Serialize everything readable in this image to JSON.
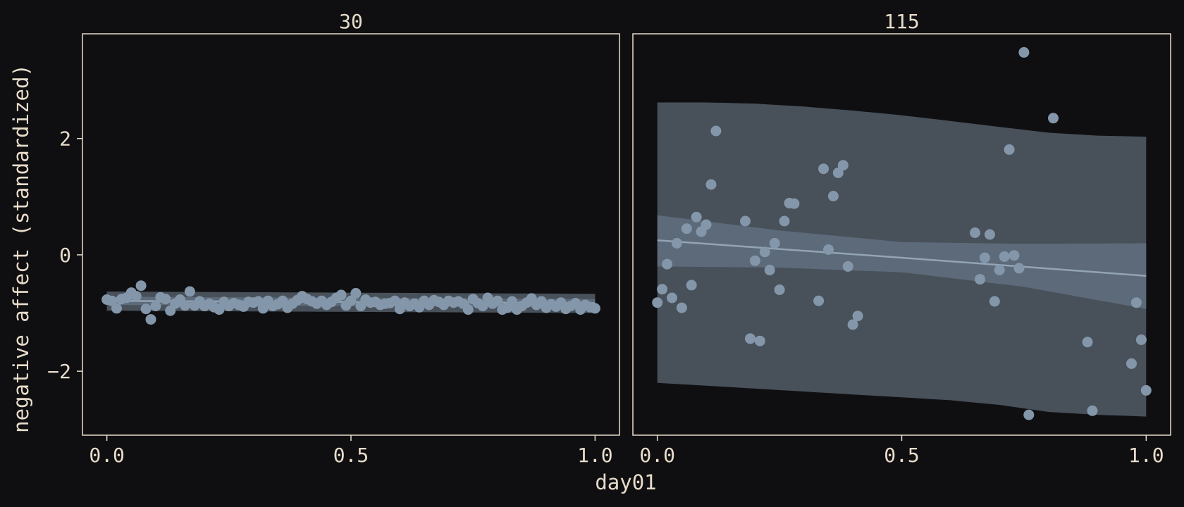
{
  "chart_data": {
    "type": "scatter",
    "xlabel": "day01",
    "ylabel": "negative affect (standardized)",
    "colors": {
      "background": "#0f0f11",
      "frame": "#e8dccb",
      "text": "#e8dccb",
      "points": "#8497aa",
      "outer_band": "#48505a",
      "inner_band": "#5c6a79",
      "fit_line": "#93a4b5"
    },
    "ylim": [
      -3.1,
      3.8
    ],
    "yticks": [
      {
        "value": -2,
        "label": "−2"
      },
      {
        "value": 0,
        "label": "0"
      },
      {
        "value": 2,
        "label": "2"
      }
    ],
    "xlim": [
      -0.05,
      1.05
    ],
    "xticks": [
      {
        "value": 0,
        "label": "0.0"
      },
      {
        "value": 0.5,
        "label": "0.5"
      },
      {
        "value": 1,
        "label": "1.0"
      }
    ],
    "panels": [
      {
        "title": "30",
        "fit": {
          "x": [
            0,
            1
          ],
          "y": [
            -0.79,
            -0.83
          ]
        },
        "inner_band": {
          "x": [
            0,
            1
          ],
          "lower": [
            -0.86,
            -0.9
          ],
          "upper": [
            -0.72,
            -0.76
          ]
        },
        "outer_band": {
          "x": [
            0,
            1
          ],
          "lower": [
            -0.96,
            -1.0
          ],
          "upper": [
            -0.63,
            -0.67
          ]
        },
        "points": {
          "x": [
            0,
            0.01,
            0.02,
            0.03,
            0.04,
            0.05,
            0.06,
            0.07,
            0.08,
            0.09,
            0.1,
            0.11,
            0.12,
            0.13,
            0.14,
            0.15,
            0.16,
            0.17,
            0.18,
            0.19,
            0.2,
            0.21,
            0.22,
            0.23,
            0.24,
            0.25,
            0.26,
            0.27,
            0.28,
            0.29,
            0.3,
            0.31,
            0.32,
            0.33,
            0.34,
            0.35,
            0.36,
            0.37,
            0.38,
            0.39,
            0.4,
            0.41,
            0.42,
            0.43,
            0.44,
            0.45,
            0.46,
            0.47,
            0.48,
            0.49,
            0.5,
            0.51,
            0.52,
            0.53,
            0.54,
            0.55,
            0.56,
            0.57,
            0.58,
            0.59,
            0.6,
            0.61,
            0.62,
            0.63,
            0.64,
            0.65,
            0.66,
            0.67,
            0.68,
            0.69,
            0.7,
            0.71,
            0.72,
            0.73,
            0.74,
            0.75,
            0.76,
            0.77,
            0.78,
            0.79,
            0.8,
            0.81,
            0.82,
            0.83,
            0.84,
            0.85,
            0.86,
            0.87,
            0.88,
            0.89,
            0.9,
            0.91,
            0.92,
            0.93,
            0.94,
            0.95,
            0.96,
            0.97,
            0.98,
            0.99,
            1.0
          ],
          "y": [
            -0.77,
            -0.79,
            -0.92,
            -0.76,
            -0.74,
            -0.65,
            -0.71,
            -0.53,
            -0.93,
            -1.11,
            -0.88,
            -0.73,
            -0.76,
            -0.96,
            -0.84,
            -0.77,
            -0.87,
            -0.63,
            -0.87,
            -0.8,
            -0.88,
            -0.84,
            -0.9,
            -0.94,
            -0.81,
            -0.88,
            -0.83,
            -0.86,
            -0.89,
            -0.81,
            -0.82,
            -0.8,
            -0.92,
            -0.79,
            -0.88,
            -0.85,
            -0.79,
            -0.91,
            -0.84,
            -0.78,
            -0.71,
            -0.76,
            -0.8,
            -0.84,
            -0.79,
            -0.86,
            -0.81,
            -0.74,
            -0.69,
            -0.87,
            -0.79,
            -0.66,
            -0.88,
            -0.77,
            -0.82,
            -0.81,
            -0.86,
            -0.84,
            -0.83,
            -0.79,
            -0.93,
            -0.82,
            -0.88,
            -0.84,
            -0.9,
            -0.79,
            -0.86,
            -0.78,
            -0.81,
            -0.86,
            -0.79,
            -0.82,
            -0.8,
            -0.84,
            -0.94,
            -0.76,
            -0.83,
            -0.88,
            -0.74,
            -0.84,
            -0.79,
            -0.94,
            -0.91,
            -0.8,
            -0.94,
            -0.88,
            -0.82,
            -0.75,
            -0.86,
            -0.8,
            -0.91,
            -0.85,
            -0.89,
            -0.82,
            -0.93,
            -0.88,
            -0.83,
            -0.94,
            -0.86,
            -0.9,
            -0.92
          ]
        }
      },
      {
        "title": "115",
        "fit": {
          "x": [
            0,
            0.5,
            1
          ],
          "y": [
            0.25,
            -0.05,
            -0.36
          ]
        },
        "inner_band": {
          "x": [
            0,
            0.25,
            0.5,
            0.75,
            1
          ],
          "lower": [
            -0.2,
            -0.22,
            -0.3,
            -0.55,
            -0.93
          ],
          "upper": [
            0.68,
            0.42,
            0.22,
            0.19,
            0.2
          ]
        },
        "outer_band": {
          "x": [
            0,
            0.1,
            0.2,
            0.3,
            0.4,
            0.5,
            0.6,
            0.7,
            0.8,
            0.9,
            1.0
          ],
          "lower": [
            -2.2,
            -2.25,
            -2.3,
            -2.35,
            -2.4,
            -2.45,
            -2.5,
            -2.58,
            -2.7,
            -2.75,
            -2.78
          ],
          "upper": [
            2.62,
            2.62,
            2.6,
            2.55,
            2.48,
            2.4,
            2.3,
            2.2,
            2.1,
            2.05,
            2.03
          ]
        },
        "points": {
          "x": [
            0.0,
            0.01,
            0.02,
            0.03,
            0.04,
            0.05,
            0.06,
            0.07,
            0.08,
            0.09,
            0.1,
            0.11,
            0.12,
            0.18,
            0.19,
            0.2,
            0.21,
            0.22,
            0.23,
            0.24,
            0.25,
            0.26,
            0.27,
            0.28,
            0.33,
            0.34,
            0.35,
            0.36,
            0.37,
            0.38,
            0.39,
            0.4,
            0.41,
            0.65,
            0.66,
            0.67,
            0.68,
            0.69,
            0.7,
            0.71,
            0.72,
            0.73,
            0.74,
            0.75,
            0.76,
            0.81,
            0.88,
            0.89,
            0.97,
            0.98,
            0.99,
            1.0
          ],
          "y": [
            -0.82,
            -0.59,
            -0.16,
            -0.74,
            0.2,
            -0.91,
            0.45,
            -0.52,
            0.65,
            0.4,
            0.52,
            1.21,
            2.13,
            0.58,
            -1.44,
            -0.1,
            -1.48,
            0.05,
            -0.26,
            0.2,
            -0.6,
            0.58,
            0.89,
            0.88,
            -0.79,
            1.48,
            0.09,
            1.01,
            1.41,
            1.54,
            -0.2,
            -1.2,
            -1.05,
            0.38,
            -0.42,
            -0.05,
            0.35,
            -0.8,
            -0.26,
            -0.03,
            1.81,
            -0.01,
            -0.23,
            3.48,
            -2.75,
            2.35,
            -1.5,
            -2.68,
            -1.87,
            -0.82,
            -1.46,
            -2.33
          ]
        }
      }
    ]
  }
}
